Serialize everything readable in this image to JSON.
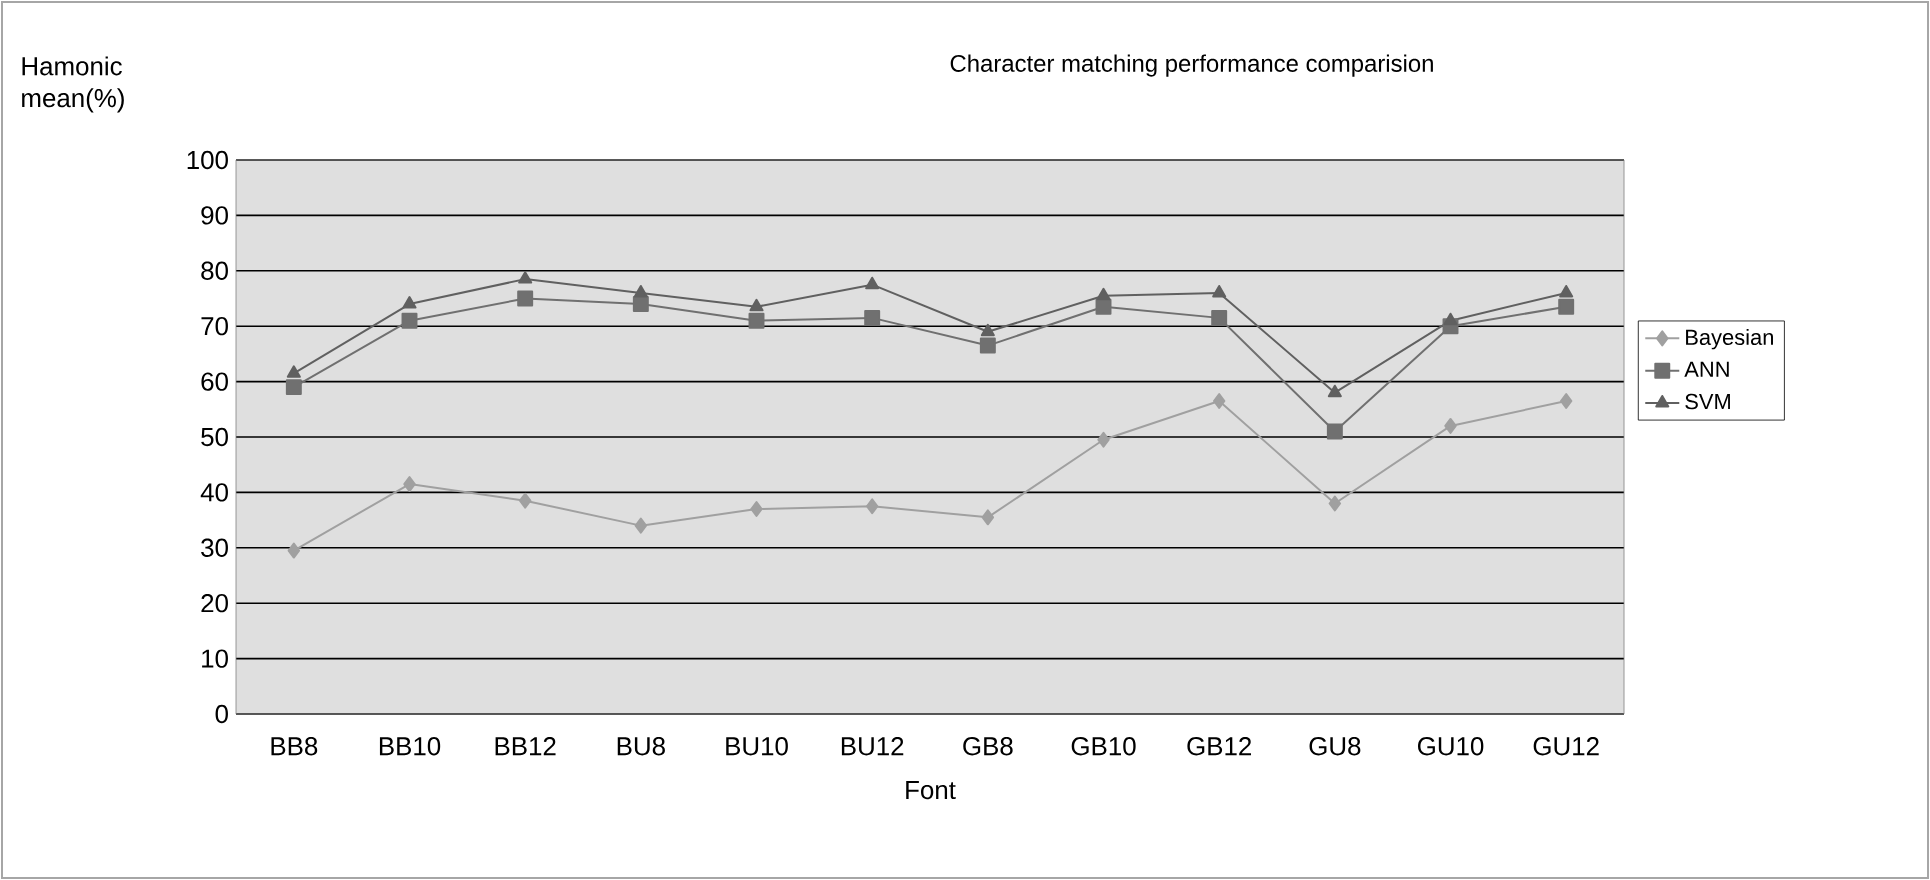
{
  "chart_data": {
    "type": "line",
    "title": "Character matching performance comparision",
    "xlabel": "Font",
    "ylabel": "Hamonic mean(%)",
    "categories": [
      "BB8",
      "BB10",
      "BB12",
      "BU8",
      "BU10",
      "BU12",
      "GB8",
      "GB10",
      "GB12",
      "GU8",
      "GU10",
      "GU12"
    ],
    "series": [
      {
        "name": "Bayesian",
        "color": "#a0a0a0",
        "marker": "diamond",
        "values": [
          29.5,
          41.5,
          38.5,
          34,
          37,
          37.5,
          35.5,
          49.5,
          56.5,
          38,
          52,
          56.5
        ]
      },
      {
        "name": "ANN",
        "color": "#707070",
        "marker": "square",
        "values": [
          59,
          71,
          75,
          74,
          71,
          71.5,
          66.5,
          73.5,
          71.5,
          51,
          70,
          73.5
        ]
      },
      {
        "name": "SVM",
        "color": "#606060",
        "marker": "triangle",
        "values": [
          61.5,
          74,
          78.5,
          76,
          73.5,
          77.5,
          69,
          75.5,
          76,
          58,
          71,
          76
        ]
      }
    ],
    "ylim": [
      0,
      100
    ],
    "yticks": [
      0,
      10,
      20,
      30,
      40,
      50,
      60,
      70,
      80,
      90,
      100
    ],
    "grid": "y",
    "legend": "right"
  }
}
